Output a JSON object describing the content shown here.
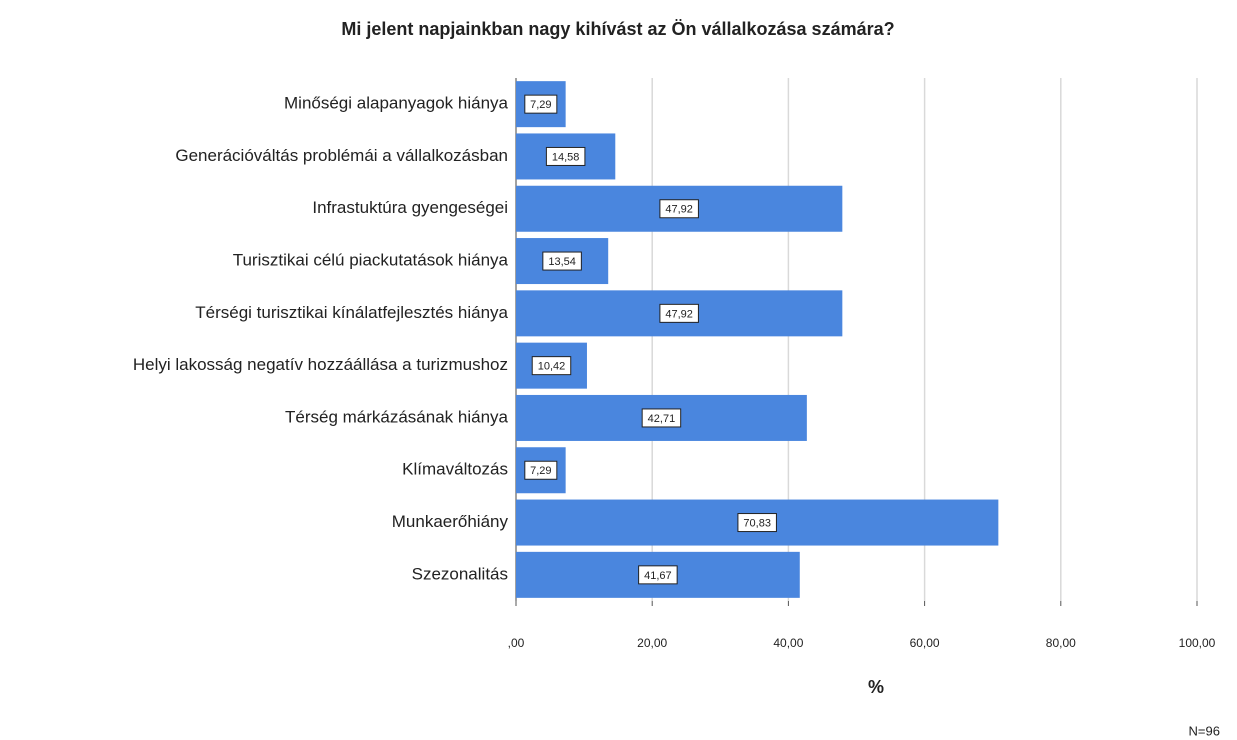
{
  "chart_data": {
    "type": "bar",
    "orientation": "horizontal",
    "title": "Mi jelent napjainkban nagy kihívást az Ön vállalkozása számára?",
    "categories": [
      "Minőségi alapanyagok hiánya",
      "Generációváltás problémái a vállalkozásban",
      "Infrastuktúra gyengeségei",
      "Turisztikai célú piackutatások hiánya",
      "Térségi turisztikai kínálatfejlesztés hiánya",
      "Helyi lakosság negatív hozzáállása a turizmushoz",
      "Térség márkázásának hiánya",
      "Klímaváltozás",
      "Munkaerőhiány",
      "Szezonalitás"
    ],
    "values": [
      7.29,
      14.58,
      47.92,
      13.54,
      47.92,
      10.42,
      42.71,
      7.29,
      70.83,
      41.67
    ],
    "value_labels": [
      "7,29",
      "14,58",
      "47,92",
      "13,54",
      "47,92",
      "10,42",
      "42,71",
      "7,29",
      "70,83",
      "41,67"
    ],
    "color": "#4a86de",
    "xlim": [
      0,
      100
    ],
    "xticks": [
      {
        "value": 0,
        "label": ",00"
      },
      {
        "value": 20,
        "label": "20,00"
      },
      {
        "value": 40,
        "label": "40,00"
      },
      {
        "value": 60,
        "label": "60,00"
      },
      {
        "value": 80,
        "label": "80,00"
      },
      {
        "value": 100,
        "label": "100,00"
      }
    ],
    "xlabel": "%",
    "grid": true,
    "annotation": "N=96"
  }
}
